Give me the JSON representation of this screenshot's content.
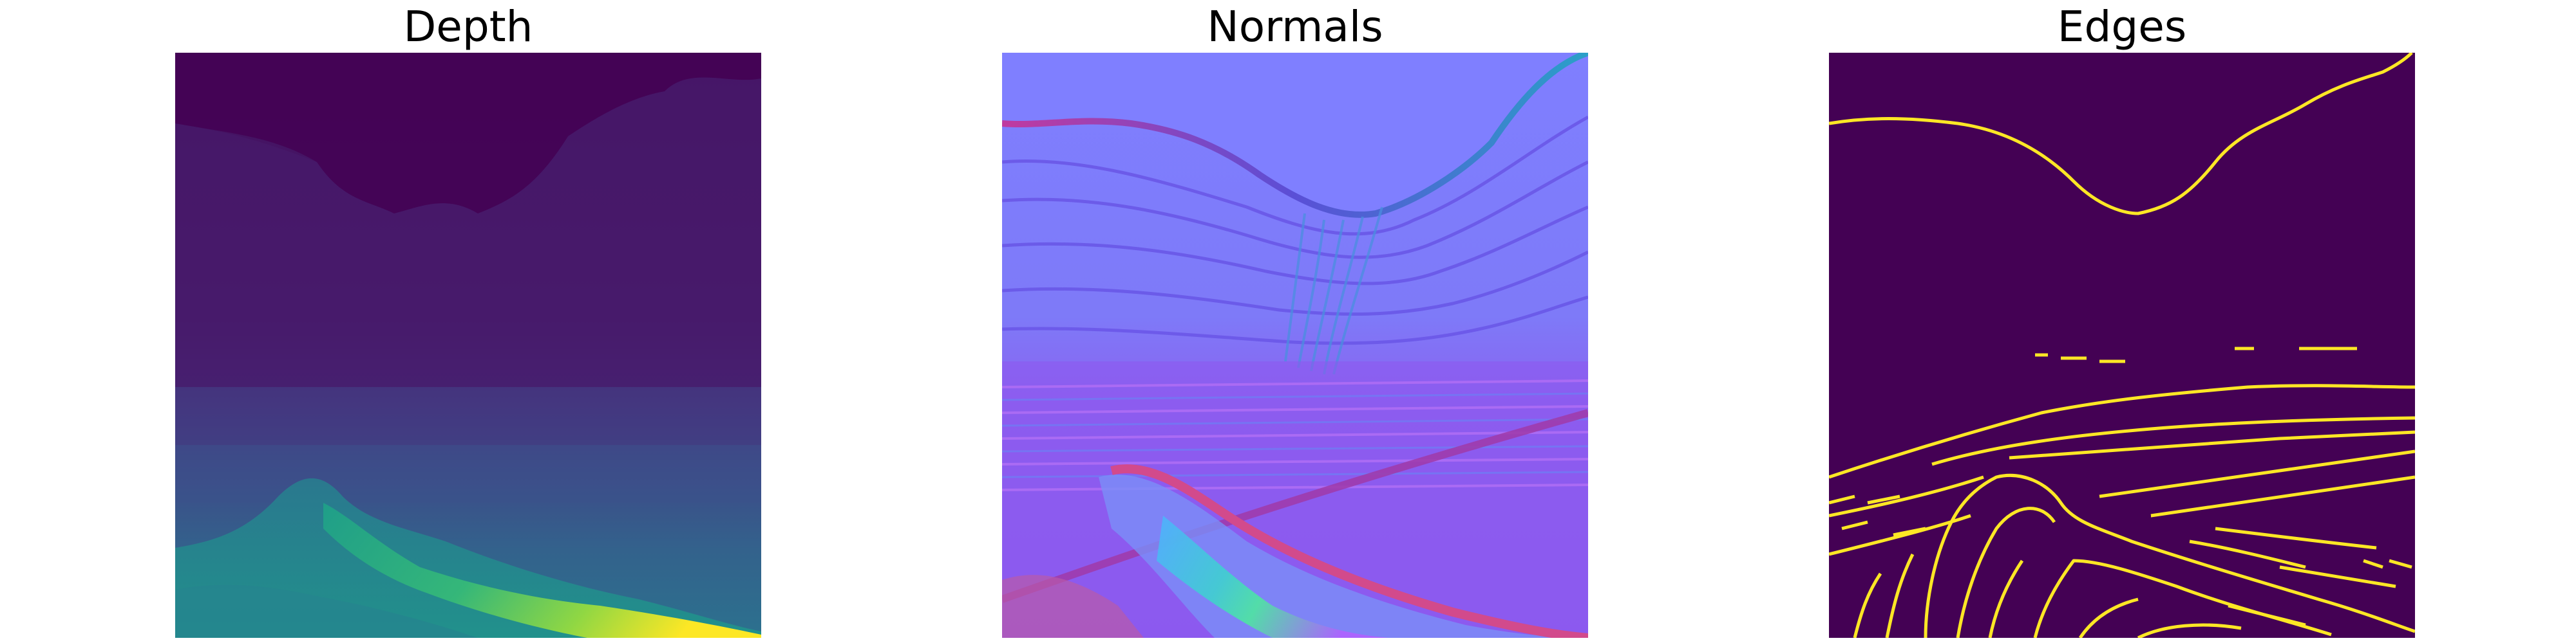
{
  "figure": {
    "panels": [
      {
        "title": "Depth",
        "image": "depth-map"
      },
      {
        "title": "Normals",
        "image": "surface-normals-map"
      },
      {
        "title": "Edges",
        "image": "edge-detection-map"
      }
    ],
    "colors": {
      "background": "#ffffff",
      "depth_far": "#440154",
      "depth_mid": "#3b528b",
      "depth_near": "#21918c",
      "depth_nearest": "#fde725",
      "normals_base": "#7f7fff",
      "edges_background": "#440154",
      "edges_line": "#fde725"
    }
  }
}
